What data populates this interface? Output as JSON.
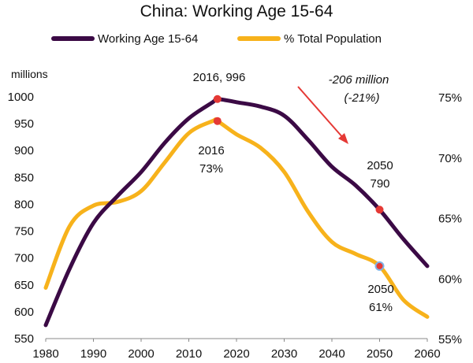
{
  "chart_data": {
    "type": "line",
    "title": "China: Working Age 15-64",
    "x": [
      1980,
      1985,
      1990,
      1995,
      2000,
      2005,
      2010,
      2015,
      2016,
      2020,
      2025,
      2030,
      2035,
      2040,
      2045,
      2050,
      2055,
      2060
    ],
    "x_ticks": [
      "1980",
      "1990",
      "2000",
      "2010",
      "2020",
      "2030",
      "2040",
      "2050",
      "2060"
    ],
    "xlim": [
      1980,
      2060
    ],
    "series": [
      {
        "name": "Working Age 15-64",
        "axis": "left",
        "color": "#3b0a45",
        "values": [
          575,
          680,
          765,
          815,
          860,
          915,
          960,
          990,
          996,
          990,
          982,
          965,
          920,
          870,
          835,
          790,
          735,
          685
        ]
      },
      {
        "name": "% Total Population",
        "axis": "right",
        "color": "#f7b21b",
        "values": [
          59.2,
          64.3,
          66.0,
          66.3,
          67.2,
          69.6,
          72.0,
          73.0,
          73.0,
          71.9,
          70.8,
          68.8,
          65.5,
          63.0,
          62.0,
          61.0,
          58.2,
          56.8
        ]
      }
    ],
    "y_left": {
      "unit": "millions",
      "ylim": [
        550,
        1000
      ],
      "ticks": [
        "550",
        "600",
        "650",
        "700",
        "750",
        "800",
        "850",
        "900",
        "950",
        "1000"
      ]
    },
    "y_right": {
      "ylim": [
        55,
        75
      ],
      "ticks": [
        "55%",
        "60%",
        "65%",
        "70%",
        "75%"
      ]
    },
    "legend_position": "top",
    "grid": false,
    "annotations": {
      "peak_working": {
        "x": 2016,
        "y": 996,
        "text": "2016, 996",
        "marker_color": "#e53935"
      },
      "peak_pct": {
        "x": 2016,
        "y": 73,
        "line1": "2016",
        "line2": "73%",
        "marker_color": "#e53935"
      },
      "w2050": {
        "x": 2050,
        "y": 790,
        "line1": "2050",
        "line2": "790",
        "marker_color": "#e53935"
      },
      "p2050": {
        "x": 2050,
        "y": 61,
        "line1": "2050",
        "line2": "61%",
        "marker_color": "#e53935",
        "marker_ring": "#7fb2e6"
      },
      "decline": {
        "line1": "-206 million",
        "line2": "(-21%)",
        "arrow_color": "#e53935"
      }
    }
  }
}
